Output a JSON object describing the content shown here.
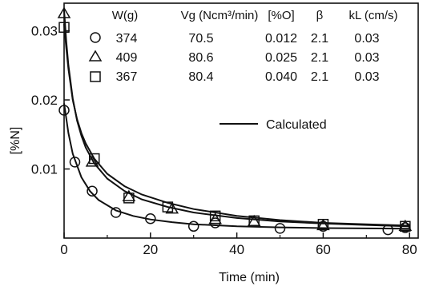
{
  "chart_data": {
    "type": "scatter",
    "xlabel": "Time (min)",
    "ylabel": "[%N]",
    "xlim": [
      0,
      82
    ],
    "ylim": [
      0,
      0.034
    ],
    "xticks": [
      "0",
      "20",
      "40",
      "60",
      "80"
    ],
    "yticks": [
      "0.01",
      "0.02",
      "0.03"
    ],
    "legend_headers": [
      "W(g)",
      "Vg (Ncm³/min)",
      "[%O]",
      "β",
      "kL (cm/s)"
    ],
    "legend_line_label": "Calculated",
    "series": [
      {
        "marker": "circle",
        "W": "374",
        "Vg": "70.5",
        "O": "0.012",
        "beta": "2.1",
        "kL": "0.03",
        "points": [
          [
            0,
            0.0185
          ],
          [
            2.5,
            0.011
          ],
          [
            6.5,
            0.0068
          ],
          [
            12,
            0.0037
          ],
          [
            20,
            0.0028
          ],
          [
            30,
            0.0017
          ],
          [
            35,
            0.0022
          ],
          [
            50,
            0.0014
          ],
          [
            60,
            0.0017
          ],
          [
            75,
            0.0012
          ],
          [
            79,
            0.0015
          ]
        ],
        "curve": [
          [
            0,
            0.0195
          ],
          [
            1,
            0.0152
          ],
          [
            2,
            0.0122
          ],
          [
            4,
            0.0088
          ],
          [
            6,
            0.0068
          ],
          [
            8,
            0.0055
          ],
          [
            12,
            0.004
          ],
          [
            16,
            0.0032
          ],
          [
            20,
            0.0027
          ],
          [
            25,
            0.0023
          ],
          [
            30,
            0.002
          ],
          [
            40,
            0.0017
          ],
          [
            50,
            0.00155
          ],
          [
            60,
            0.00145
          ],
          [
            70,
            0.0014
          ],
          [
            80,
            0.00135
          ]
        ]
      },
      {
        "marker": "triangle",
        "W": "409",
        "Vg": "80.6",
        "O": "0.025",
        "beta": "2.1",
        "kL": "0.03",
        "points": [
          [
            0,
            0.0325
          ],
          [
            6.5,
            0.011
          ],
          [
            15,
            0.006
          ],
          [
            25,
            0.0042
          ],
          [
            35,
            0.0027
          ],
          [
            44,
            0.0024
          ],
          [
            60,
            0.0018
          ],
          [
            79,
            0.0017
          ]
        ],
        "curve": [
          [
            0,
            0.033
          ],
          [
            0.5,
            0.0285
          ],
          [
            1,
            0.025
          ],
          [
            2,
            0.0202
          ],
          [
            3,
            0.017
          ],
          [
            4,
            0.0148
          ],
          [
            5,
            0.0131
          ],
          [
            7,
            0.0108
          ],
          [
            10,
            0.0086
          ],
          [
            14,
            0.0068
          ],
          [
            18,
            0.0056
          ],
          [
            24,
            0.0045
          ],
          [
            30,
            0.0037
          ],
          [
            40,
            0.0029
          ],
          [
            50,
            0.0024
          ],
          [
            60,
            0.0021
          ],
          [
            70,
            0.0019
          ],
          [
            80,
            0.0017
          ]
        ]
      },
      {
        "marker": "square",
        "W": "367",
        "Vg": "80.4",
        "O": "0.040",
        "beta": "2.1",
        "kL": "0.03",
        "points": [
          [
            0,
            0.0305
          ],
          [
            7,
            0.0115
          ],
          [
            15,
            0.0058
          ],
          [
            24,
            0.0045
          ],
          [
            35,
            0.0032
          ],
          [
            44,
            0.0025
          ],
          [
            60,
            0.002
          ],
          [
            79,
            0.0017
          ]
        ],
        "curve": [
          [
            0,
            0.031
          ],
          [
            0.5,
            0.0275
          ],
          [
            1,
            0.0245
          ],
          [
            2,
            0.02
          ],
          [
            3,
            0.0172
          ],
          [
            4,
            0.0152
          ],
          [
            5,
            0.0137
          ],
          [
            7,
            0.0115
          ],
          [
            10,
            0.0093
          ],
          [
            14,
            0.0075
          ],
          [
            18,
            0.0063
          ],
          [
            24,
            0.0051
          ],
          [
            30,
            0.0042
          ],
          [
            40,
            0.0032
          ],
          [
            50,
            0.0026
          ],
          [
            60,
            0.0022
          ],
          [
            70,
            0.002
          ],
          [
            80,
            0.0018
          ]
        ]
      }
    ]
  }
}
